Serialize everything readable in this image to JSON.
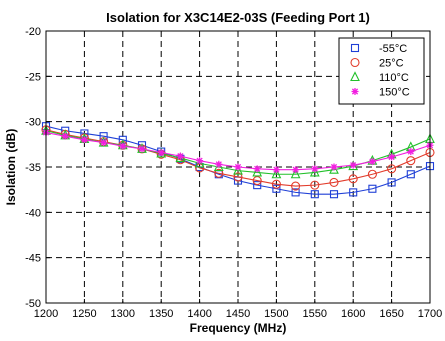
{
  "chart_data": {
    "type": "line",
    "title": "Isolation for X3C14E2-03S (Feeding Port 1)",
    "xlabel": "Frequency (MHz)",
    "ylabel": "Isolation (dB)",
    "xlim": [
      1200,
      1700
    ],
    "ylim": [
      -50,
      -20
    ],
    "xticks": [
      1200,
      1250,
      1300,
      1350,
      1400,
      1450,
      1500,
      1550,
      1600,
      1650,
      1700
    ],
    "yticks": [
      -20,
      -25,
      -30,
      -35,
      -40,
      -45,
      -50
    ],
    "grid": true,
    "legend_position": "top-right",
    "series": [
      {
        "name": "-55°C",
        "color": "#1f3fd6",
        "marker": "square",
        "x": [
          1200,
          1225,
          1250,
          1275,
          1300,
          1325,
          1350,
          1375,
          1400,
          1425,
          1450,
          1475,
          1500,
          1525,
          1550,
          1575,
          1600,
          1625,
          1650,
          1675,
          1700
        ],
        "y": [
          -30.5,
          -31.0,
          -31.3,
          -31.6,
          -32.0,
          -32.6,
          -33.3,
          -34.1,
          -35.0,
          -35.8,
          -36.5,
          -37.0,
          -37.4,
          -37.8,
          -38.0,
          -38.0,
          -37.8,
          -37.4,
          -36.7,
          -35.8,
          -34.9
        ]
      },
      {
        "name": "25°C",
        "color": "#e23c2c",
        "marker": "circle",
        "x": [
          1200,
          1225,
          1250,
          1275,
          1300,
          1325,
          1350,
          1375,
          1400,
          1425,
          1450,
          1475,
          1500,
          1525,
          1550,
          1575,
          1600,
          1625,
          1650,
          1675,
          1700
        ],
        "y": [
          -30.9,
          -31.4,
          -31.8,
          -32.2,
          -32.6,
          -33.0,
          -33.6,
          -34.2,
          -35.1,
          -35.7,
          -36.1,
          -36.5,
          -36.9,
          -37.1,
          -37.0,
          -36.7,
          -36.3,
          -35.8,
          -35.2,
          -34.3,
          -33.4
        ]
      },
      {
        "name": "110°C",
        "color": "#22c02a",
        "marker": "triangle",
        "x": [
          1200,
          1225,
          1250,
          1275,
          1300,
          1325,
          1350,
          1375,
          1400,
          1425,
          1450,
          1475,
          1500,
          1525,
          1550,
          1575,
          1600,
          1625,
          1650,
          1675,
          1700
        ],
        "y": [
          -31.0,
          -31.5,
          -31.9,
          -32.3,
          -32.6,
          -33.0,
          -33.5,
          -34.0,
          -34.6,
          -35.0,
          -35.4,
          -35.6,
          -35.8,
          -35.8,
          -35.6,
          -35.3,
          -34.9,
          -34.3,
          -33.6,
          -32.8,
          -31.9
        ]
      },
      {
        "name": "150°C",
        "color": "#f21ee0",
        "marker": "star",
        "x": [
          1200,
          1225,
          1250,
          1275,
          1300,
          1325,
          1350,
          1375,
          1400,
          1425,
          1450,
          1475,
          1500,
          1525,
          1550,
          1575,
          1600,
          1625,
          1650,
          1675,
          1700
        ],
        "y": [
          -31.2,
          -31.6,
          -32.0,
          -32.3,
          -32.7,
          -33.0,
          -33.4,
          -33.8,
          -34.3,
          -34.7,
          -35.0,
          -35.2,
          -35.3,
          -35.3,
          -35.2,
          -35.0,
          -34.8,
          -34.4,
          -33.9,
          -33.3,
          -32.6
        ]
      }
    ]
  }
}
